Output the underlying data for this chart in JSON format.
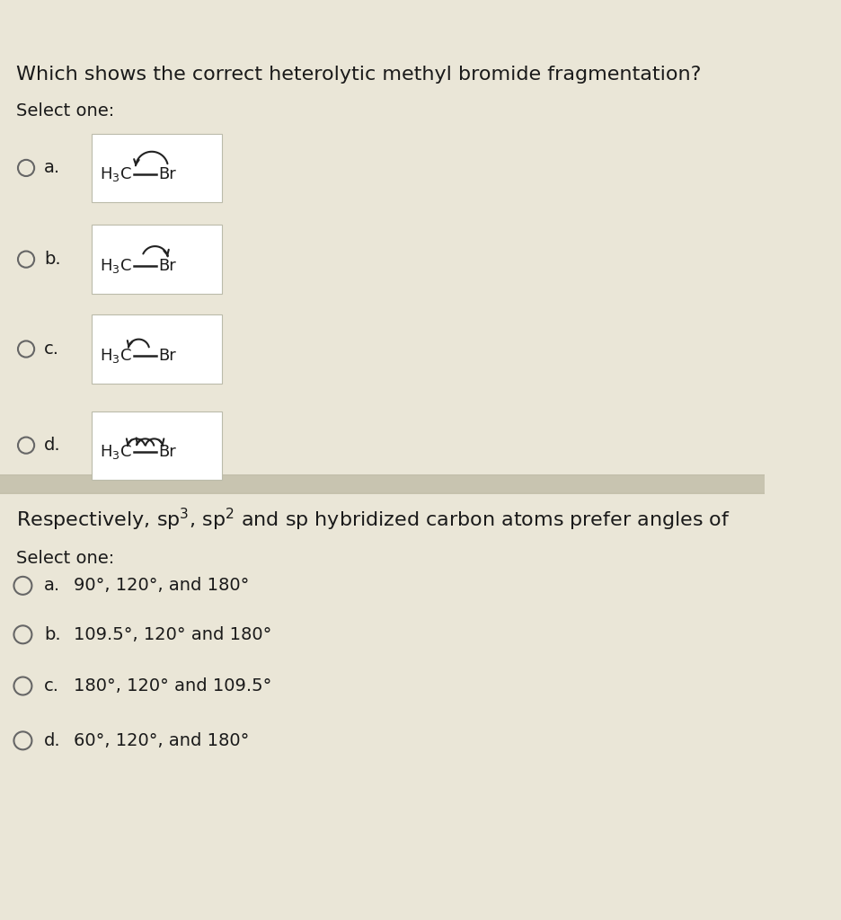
{
  "bg_color": "#eae6d7",
  "white_box_color": "#ffffff",
  "text_color": "#1a1a1a",
  "q1_title": "Which shows the correct heterolytic methyl bromide fragmentation?",
  "q1_select": "Select one:",
  "q1_options": [
    "a.",
    "b.",
    "c.",
    "d."
  ],
  "q2_title_parts": [
    "Respectively, sp",
    "3",
    ", sp",
    "2",
    " and sp hybridized carbon atoms prefer angles of"
  ],
  "q2_select": "Select one:",
  "q2_options": [
    [
      "a.",
      "90°, 120°, and 180°"
    ],
    [
      "b.",
      "109.5°, 120° and 180°"
    ],
    [
      "c.",
      "180°, 120° and 109.5°"
    ],
    [
      "d.",
      "60°, 120°, and 180°"
    ]
  ],
  "divider_color": "#c8c4b0",
  "font_size_title": 16,
  "font_size_label": 14,
  "font_size_option": 14,
  "font_size_chem": 13
}
